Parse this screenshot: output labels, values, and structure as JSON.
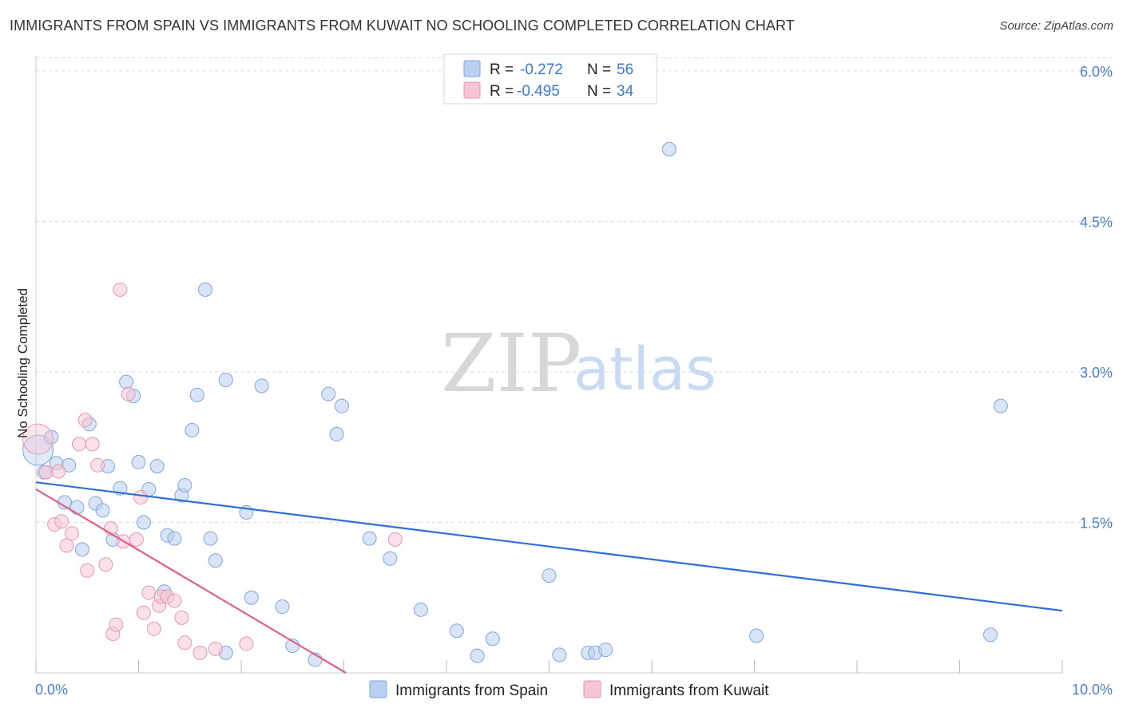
{
  "title": "IMMIGRANTS FROM SPAIN VS IMMIGRANTS FROM KUWAIT NO SCHOOLING COMPLETED CORRELATION CHART",
  "source": "Source: ZipAtlas.com",
  "watermark": {
    "zip": "ZIP",
    "atlas": "atlas"
  },
  "legend": {
    "spain": {
      "r_label": "R =",
      "r_value": "-0.272",
      "n_label": "N =",
      "n_value": "56"
    },
    "kuwait": {
      "r_label": "R =",
      "r_value": "-0.495",
      "n_label": "N =",
      "n_value": "34"
    }
  },
  "bottom_legend": {
    "spain": "Immigrants from Spain",
    "kuwait": "Immigrants from Kuwait"
  },
  "colors": {
    "spain_fill": "#b9d0f0",
    "spain_stroke": "#7fa6de",
    "spain_line": "#2f6fd0",
    "kuwait_fill": "#f7c6d4",
    "kuwait_stroke": "#e897b0",
    "kuwait_line": "#e0608a"
  },
  "chart_data": {
    "type": "scatter",
    "title": "IMMIGRANTS FROM SPAIN VS IMMIGRANTS FROM KUWAIT NO SCHOOLING COMPLETED CORRELATION CHART",
    "xlabel": "",
    "ylabel": "No Schooling Completed",
    "xlim": [
      0,
      10
    ],
    "ylim": [
      0,
      6.15
    ],
    "x_tick_labels": [
      "0.0%",
      "10.0%"
    ],
    "y_ticks": [
      1.5,
      3.0,
      4.5,
      6.0
    ],
    "y_tick_labels": [
      "1.5%",
      "3.0%",
      "4.5%",
      "6.0%"
    ],
    "series": [
      {
        "name": "Immigrants from Spain",
        "points": [
          [
            0.02,
            2.22
          ],
          [
            0.08,
            2.0
          ],
          [
            0.15,
            2.35
          ],
          [
            0.2,
            2.09
          ],
          [
            0.28,
            1.7
          ],
          [
            0.32,
            2.07
          ],
          [
            0.4,
            1.65
          ],
          [
            0.45,
            1.23
          ],
          [
            0.52,
            2.48
          ],
          [
            0.58,
            1.69
          ],
          [
            0.65,
            1.62
          ],
          [
            0.7,
            2.06
          ],
          [
            0.75,
            1.33
          ],
          [
            0.82,
            1.84
          ],
          [
            0.88,
            2.9
          ],
          [
            0.95,
            2.76
          ],
          [
            1.0,
            2.1
          ],
          [
            1.05,
            1.5
          ],
          [
            1.1,
            1.83
          ],
          [
            1.18,
            2.06
          ],
          [
            1.25,
            0.81
          ],
          [
            1.28,
            1.37
          ],
          [
            1.35,
            1.34
          ],
          [
            1.42,
            1.77
          ],
          [
            1.45,
            1.87
          ],
          [
            1.52,
            2.42
          ],
          [
            1.57,
            2.77
          ],
          [
            1.65,
            3.82
          ],
          [
            1.7,
            1.34
          ],
          [
            1.75,
            1.12
          ],
          [
            1.85,
            0.2
          ],
          [
            1.85,
            2.92
          ],
          [
            2.05,
            1.6
          ],
          [
            2.1,
            0.75
          ],
          [
            2.2,
            2.86
          ],
          [
            2.4,
            0.66
          ],
          [
            2.5,
            0.27
          ],
          [
            2.72,
            0.13
          ],
          [
            2.85,
            2.78
          ],
          [
            2.93,
            2.38
          ],
          [
            2.98,
            2.66
          ],
          [
            3.25,
            1.34
          ],
          [
            3.45,
            1.14
          ],
          [
            3.75,
            0.63
          ],
          [
            4.1,
            0.42
          ],
          [
            4.3,
            0.17
          ],
          [
            4.45,
            0.34
          ],
          [
            5.0,
            0.97
          ],
          [
            5.1,
            0.18
          ],
          [
            5.38,
            0.2
          ],
          [
            5.45,
            0.2
          ],
          [
            5.55,
            0.23
          ],
          [
            6.17,
            5.22
          ],
          [
            7.02,
            0.37
          ],
          [
            9.3,
            0.38
          ],
          [
            9.4,
            2.66
          ]
        ],
        "trend": {
          "x": [
            0.0,
            10.0
          ],
          "y": [
            1.9,
            0.62
          ]
        }
      },
      {
        "name": "Immigrants from Kuwait",
        "points": [
          [
            0.02,
            2.33
          ],
          [
            0.1,
            2.0
          ],
          [
            0.18,
            1.48
          ],
          [
            0.22,
            2.01
          ],
          [
            0.25,
            1.51
          ],
          [
            0.3,
            1.27
          ],
          [
            0.35,
            1.39
          ],
          [
            0.42,
            2.28
          ],
          [
            0.48,
            2.52
          ],
          [
            0.5,
            1.02
          ],
          [
            0.55,
            2.28
          ],
          [
            0.6,
            2.07
          ],
          [
            0.68,
            1.08
          ],
          [
            0.73,
            1.44
          ],
          [
            0.75,
            0.39
          ],
          [
            0.78,
            0.48
          ],
          [
            0.82,
            3.82
          ],
          [
            0.85,
            1.31
          ],
          [
            0.9,
            2.78
          ],
          [
            0.98,
            1.33
          ],
          [
            1.02,
            1.75
          ],
          [
            1.05,
            0.6
          ],
          [
            1.1,
            0.8
          ],
          [
            1.15,
            0.44
          ],
          [
            1.2,
            0.67
          ],
          [
            1.22,
            0.76
          ],
          [
            1.28,
            0.76
          ],
          [
            1.35,
            0.72
          ],
          [
            1.42,
            0.55
          ],
          [
            1.45,
            0.3
          ],
          [
            1.6,
            0.2
          ],
          [
            1.75,
            0.24
          ],
          [
            2.05,
            0.29
          ],
          [
            3.5,
            1.33
          ]
        ],
        "trend": {
          "x": [
            0.0,
            3.02
          ],
          "y": [
            1.83,
            0.0
          ]
        }
      }
    ]
  }
}
